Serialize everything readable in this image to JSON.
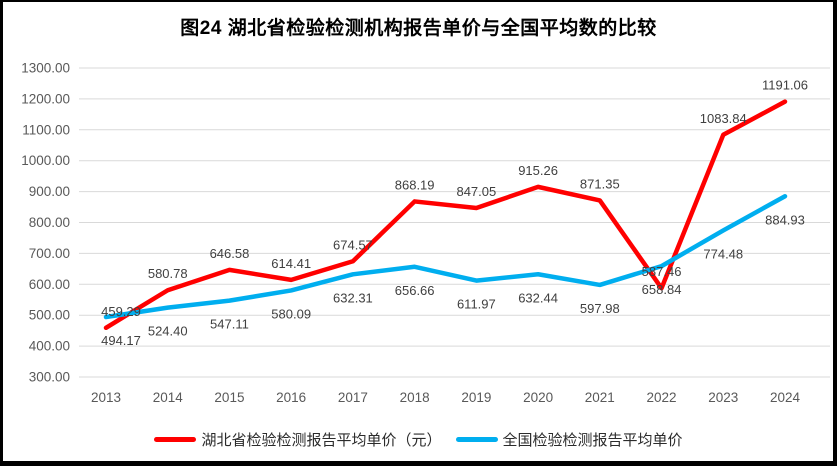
{
  "title": "图24 湖北省检验检测机构报告单价与全国平均数的比较",
  "colors": {
    "hubei_red": "#FF0000",
    "national_blue": "#00AEEF",
    "gridline": "#D9D9D9",
    "axis_text": "#595959",
    "data_label": "#404040",
    "frame": "#000000",
    "background": "#FFFFFF"
  },
  "chart_data": {
    "type": "line",
    "title": "图24 湖北省检验检测机构报告单价与全国平均数的比较",
    "categories": [
      "2013",
      "2014",
      "2015",
      "2016",
      "2017",
      "2018",
      "2019",
      "2020",
      "2021",
      "2022",
      "2023",
      "2024"
    ],
    "series": [
      {
        "name": "湖北省检验检测报告平均单价（元）",
        "color": "#FF0000",
        "label_position": "above",
        "values": [
          459.29,
          580.78,
          646.58,
          614.41,
          674.57,
          868.19,
          847.05,
          915.26,
          871.35,
          587.46,
          1083.84,
          1191.06
        ]
      },
      {
        "name": "全国检验检测报告平均单价",
        "color": "#00AEEF",
        "label_position": "below",
        "values": [
          494.17,
          524.4,
          547.11,
          580.09,
          632.31,
          656.66,
          611.97,
          632.44,
          597.98,
          658.84,
          774.48,
          884.93
        ]
      }
    ],
    "xlabel": "",
    "ylabel": "",
    "ylim": [
      300,
      1300
    ],
    "ytick_step": 100,
    "ytick_format": "2-decimals",
    "grid": true,
    "markers": false,
    "legend_position": "bottom",
    "data_labels": true
  }
}
